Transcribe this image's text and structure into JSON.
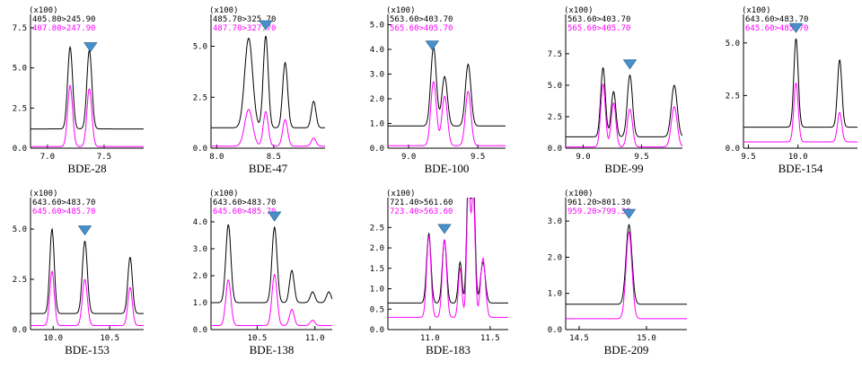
{
  "chart_data": [
    {
      "type": "line",
      "title": "BDE-28",
      "scale": "(x100)",
      "transitions": [
        "405.80>245.90",
        "407.80>247.90"
      ],
      "xlim": [
        6.85,
        7.85
      ],
      "ylim": [
        0,
        8
      ],
      "xticks": [
        7.0,
        7.5
      ],
      "xtick_labels": [
        "7.0",
        "7.5"
      ],
      "yticks": [
        0,
        2.5,
        5.0,
        7.5
      ],
      "ytick_labels": [
        "0.0",
        "2.5",
        "5.0",
        "7.5"
      ],
      "marker_rt": 7.38,
      "series": [
        {
          "name": "405.80>245.90",
          "color": "#000000",
          "baseline": 1.2,
          "peaks": [
            [
              7.2,
              5.1,
              0.022
            ],
            [
              7.37,
              4.9,
              0.022
            ]
          ]
        },
        {
          "name": "407.80>247.90",
          "color": "#ff00ff",
          "baseline": 0.1,
          "peaks": [
            [
              7.2,
              3.8,
              0.022
            ],
            [
              7.37,
              3.6,
              0.022
            ]
          ]
        }
      ]
    },
    {
      "type": "line",
      "title": "BDE-47",
      "scale": "(x100)",
      "transitions": [
        "485.70>325.70",
        "487.70>327.70"
      ],
      "xlim": [
        7.95,
        8.95
      ],
      "ylim": [
        0,
        6.3
      ],
      "xticks": [
        8.0,
        8.5
      ],
      "xtick_labels": [
        "8.0",
        "8.5"
      ],
      "yticks": [
        0,
        2.5,
        5.0
      ],
      "ytick_labels": [
        "0.0",
        "2.5",
        "5.0"
      ],
      "marker_rt": 8.43,
      "series": [
        {
          "name": "485.70>325.70",
          "color": "#000000",
          "baseline": 1.0,
          "peaks": [
            [
              8.28,
              4.4,
              0.035
            ],
            [
              8.43,
              4.5,
              0.022
            ],
            [
              8.6,
              3.2,
              0.022
            ],
            [
              8.85,
              1.3,
              0.02
            ]
          ]
        },
        {
          "name": "487.70>327.70",
          "color": "#ff00ff",
          "baseline": 0.1,
          "peaks": [
            [
              8.28,
              1.8,
              0.035
            ],
            [
              8.43,
              1.7,
              0.022
            ],
            [
              8.6,
              1.3,
              0.022
            ],
            [
              8.85,
              0.4,
              0.02
            ]
          ]
        }
      ]
    },
    {
      "type": "line",
      "title": "BDE-100",
      "scale": "(x100)",
      "transitions": [
        "563.60>403.70",
        "565.60>405.70"
      ],
      "xlim": [
        8.85,
        9.7
      ],
      "ylim": [
        0,
        5.2
      ],
      "xticks": [
        9.0,
        9.5
      ],
      "xtick_labels": [
        "9.0",
        "9.5"
      ],
      "yticks": [
        0,
        1.0,
        2.0,
        3.0,
        4.0,
        5.0
      ],
      "ytick_labels": [
        "0.0",
        "1.0",
        "2.0",
        "3.0",
        "4.0",
        "5.0"
      ],
      "marker_rt": 9.17,
      "series": [
        {
          "name": "563.60>403.70",
          "color": "#000000",
          "baseline": 0.9,
          "peaks": [
            [
              9.18,
              3.2,
              0.02
            ],
            [
              9.26,
              2.0,
              0.02
            ],
            [
              9.43,
              2.5,
              0.02
            ]
          ]
        },
        {
          "name": "565.60>405.70",
          "color": "#ff00ff",
          "baseline": 0.1,
          "peaks": [
            [
              9.18,
              2.6,
              0.02
            ],
            [
              9.26,
              2.0,
              0.02
            ],
            [
              9.43,
              2.2,
              0.02
            ]
          ]
        }
      ]
    },
    {
      "type": "line",
      "title": "BDE-99",
      "scale": "(x100)",
      "transitions": [
        "563.60>403.70",
        "565.60>405.70"
      ],
      "xlim": [
        8.85,
        9.85
      ],
      "ylim": [
        0,
        10.2
      ],
      "xticks": [
        9.0,
        9.5
      ],
      "xtick_labels": [
        "9.0",
        "9.5"
      ],
      "yticks": [
        0,
        2.5,
        5.0,
        7.5
      ],
      "ytick_labels": [
        "0.0",
        "2.5",
        "5.0",
        "7.5"
      ],
      "marker_rt": 9.4,
      "series": [
        {
          "name": "563.60>403.70",
          "color": "#000000",
          "baseline": 0.9,
          "peaks": [
            [
              9.17,
              5.5,
              0.02
            ],
            [
              9.26,
              3.6,
              0.02
            ],
            [
              9.4,
              4.9,
              0.022
            ],
            [
              9.78,
              4.1,
              0.025
            ]
          ]
        },
        {
          "name": "565.60>405.70",
          "color": "#ff00ff",
          "baseline": 0.1,
          "peaks": [
            [
              9.17,
              5.0,
              0.02
            ],
            [
              9.26,
              3.5,
              0.02
            ],
            [
              9.4,
              3.0,
              0.022
            ],
            [
              9.78,
              3.2,
              0.025
            ]
          ]
        }
      ]
    },
    {
      "type": "line",
      "title": "BDE-154",
      "scale": "(x100)",
      "transitions": [
        "643.60>483.70",
        "645.60>485.70"
      ],
      "xlim": [
        9.45,
        10.6
      ],
      "ylim": [
        0,
        6.1
      ],
      "xticks": [
        9.5,
        10.0
      ],
      "xtick_labels": [
        "9.5",
        "10.0"
      ],
      "yticks": [
        0,
        2.5,
        5.0
      ],
      "ytick_labels": [
        "0.0",
        "2.5",
        "5.0"
      ],
      "marker_rt": 9.98,
      "series": [
        {
          "name": "643.60>483.70",
          "color": "#000000",
          "baseline": 1.0,
          "peaks": [
            [
              9.98,
              4.2,
              0.022
            ],
            [
              10.42,
              3.2,
              0.022
            ]
          ]
        },
        {
          "name": "645.60>485.70",
          "color": "#ff00ff",
          "baseline": 0.3,
          "peaks": [
            [
              9.98,
              2.8,
              0.022
            ],
            [
              10.42,
              1.4,
              0.022
            ]
          ]
        }
      ]
    },
    {
      "type": "line",
      "title": "BDE-153",
      "scale": "(x100)",
      "transitions": [
        "643.60>483.70",
        "645.60>485.70"
      ],
      "xlim": [
        9.8,
        10.8
      ],
      "ylim": [
        0,
        6.3
      ],
      "xticks": [
        10.0,
        10.5
      ],
      "xtick_labels": [
        "10.0",
        "10.5"
      ],
      "yticks": [
        0,
        2.5,
        5.0
      ],
      "ytick_labels": [
        "0.0",
        "2.5",
        "5.0"
      ],
      "marker_rt": 10.28,
      "series": [
        {
          "name": "643.60>483.70",
          "color": "#000000",
          "baseline": 0.8,
          "peaks": [
            [
              9.99,
              4.2,
              0.02
            ],
            [
              10.28,
              3.6,
              0.022
            ],
            [
              10.68,
              2.8,
              0.02
            ]
          ]
        },
        {
          "name": "645.60>485.70",
          "color": "#ff00ff",
          "baseline": 0.2,
          "peaks": [
            [
              9.99,
              2.7,
              0.02
            ],
            [
              10.28,
              2.3,
              0.022
            ],
            [
              10.68,
              1.9,
              0.02
            ]
          ]
        }
      ]
    },
    {
      "type": "line",
      "title": "BDE-138",
      "scale": "(x100)",
      "transitions": [
        "643.60>483.70",
        "645.60>485.70"
      ],
      "xlim": [
        10.1,
        11.15
      ],
      "ylim": [
        0,
        4.7
      ],
      "xticks": [
        10.5,
        11.0
      ],
      "xtick_labels": [
        "10.5",
        "11.0"
      ],
      "yticks": [
        0,
        1.0,
        2.0,
        3.0,
        4.0
      ],
      "ytick_labels": [
        "0.0",
        "1.0",
        "2.0",
        "3.0",
        "4.0"
      ],
      "marker_rt": 10.65,
      "series": [
        {
          "name": "643.60>483.70",
          "color": "#000000",
          "baseline": 1.0,
          "peaks": [
            [
              10.25,
              2.9,
              0.022
            ],
            [
              10.65,
              2.8,
              0.022
            ],
            [
              10.8,
              1.2,
              0.02
            ],
            [
              10.98,
              0.4,
              0.02
            ],
            [
              11.12,
              0.4,
              0.02
            ]
          ]
        },
        {
          "name": "645.60>485.70",
          "color": "#ff00ff",
          "baseline": 0.15,
          "peaks": [
            [
              10.25,
              1.7,
              0.022
            ],
            [
              10.65,
              1.9,
              0.022
            ],
            [
              10.8,
              0.6,
              0.02
            ],
            [
              10.98,
              0.2,
              0.02
            ]
          ]
        }
      ]
    },
    {
      "type": "line",
      "title": "BDE-183",
      "scale": "(x100)",
      "transitions": [
        "721.40>561.60",
        "723.40>563.60"
      ],
      "xlim": [
        10.65,
        11.65
      ],
      "ylim": [
        0,
        3.1
      ],
      "xticks": [
        11.0,
        11.5
      ],
      "xtick_labels": [
        "11.0",
        "11.5"
      ],
      "yticks": [
        0,
        0.5,
        1.0,
        1.5,
        2.0,
        2.5
      ],
      "ytick_labels": [
        "0.0",
        "0.5",
        "1.0",
        "1.5",
        "2.0",
        "2.5"
      ],
      "marker_rt": 11.12,
      "series": [
        {
          "name": "721.40>561.60",
          "color": "#000000",
          "baseline": 0.65,
          "peaks": [
            [
              10.99,
              1.7,
              0.018
            ],
            [
              11.12,
              1.55,
              0.018
            ],
            [
              11.25,
              1.0,
              0.015
            ],
            [
              11.32,
              3.2,
              0.015
            ],
            [
              11.36,
              3.0,
              0.015
            ],
            [
              11.44,
              1.0,
              0.02
            ]
          ]
        },
        {
          "name": "723.40>563.60",
          "color": "#ff00ff",
          "baseline": 0.3,
          "peaks": [
            [
              10.99,
              2.0,
              0.018
            ],
            [
              11.12,
              1.9,
              0.018
            ],
            [
              11.25,
              1.2,
              0.015
            ],
            [
              11.32,
              3.2,
              0.015
            ],
            [
              11.36,
              3.0,
              0.015
            ],
            [
              11.44,
              1.45,
              0.02
            ]
          ]
        }
      ]
    },
    {
      "type": "line",
      "title": "BDE-209",
      "scale": "(x100)",
      "transitions": [
        "961.20>801.30",
        "959.20>799.30"
      ],
      "xlim": [
        14.4,
        15.3
      ],
      "ylim": [
        0,
        3.5
      ],
      "xticks": [
        14.5,
        15.0
      ],
      "xtick_labels": [
        "14.5",
        "15.0"
      ],
      "yticks": [
        0,
        1.0,
        2.0,
        3.0
      ],
      "ytick_labels": [
        "0.0",
        "1.0",
        "2.0",
        "3.0"
      ],
      "marker_rt": 14.87,
      "series": [
        {
          "name": "961.20>801.30",
          "color": "#000000",
          "baseline": 0.7,
          "peaks": [
            [
              14.87,
              2.2,
              0.022
            ]
          ]
        },
        {
          "name": "959.20>799.30",
          "color": "#ff00ff",
          "baseline": 0.3,
          "peaks": [
            [
              14.87,
              2.4,
              0.022
            ]
          ]
        }
      ]
    }
  ],
  "colors": {
    "axis": "#000000",
    "trace_1": "#000000",
    "trace_2": "#ff00ff",
    "marker": "#4a90c8",
    "marker_edge": "#2f6f9f"
  }
}
